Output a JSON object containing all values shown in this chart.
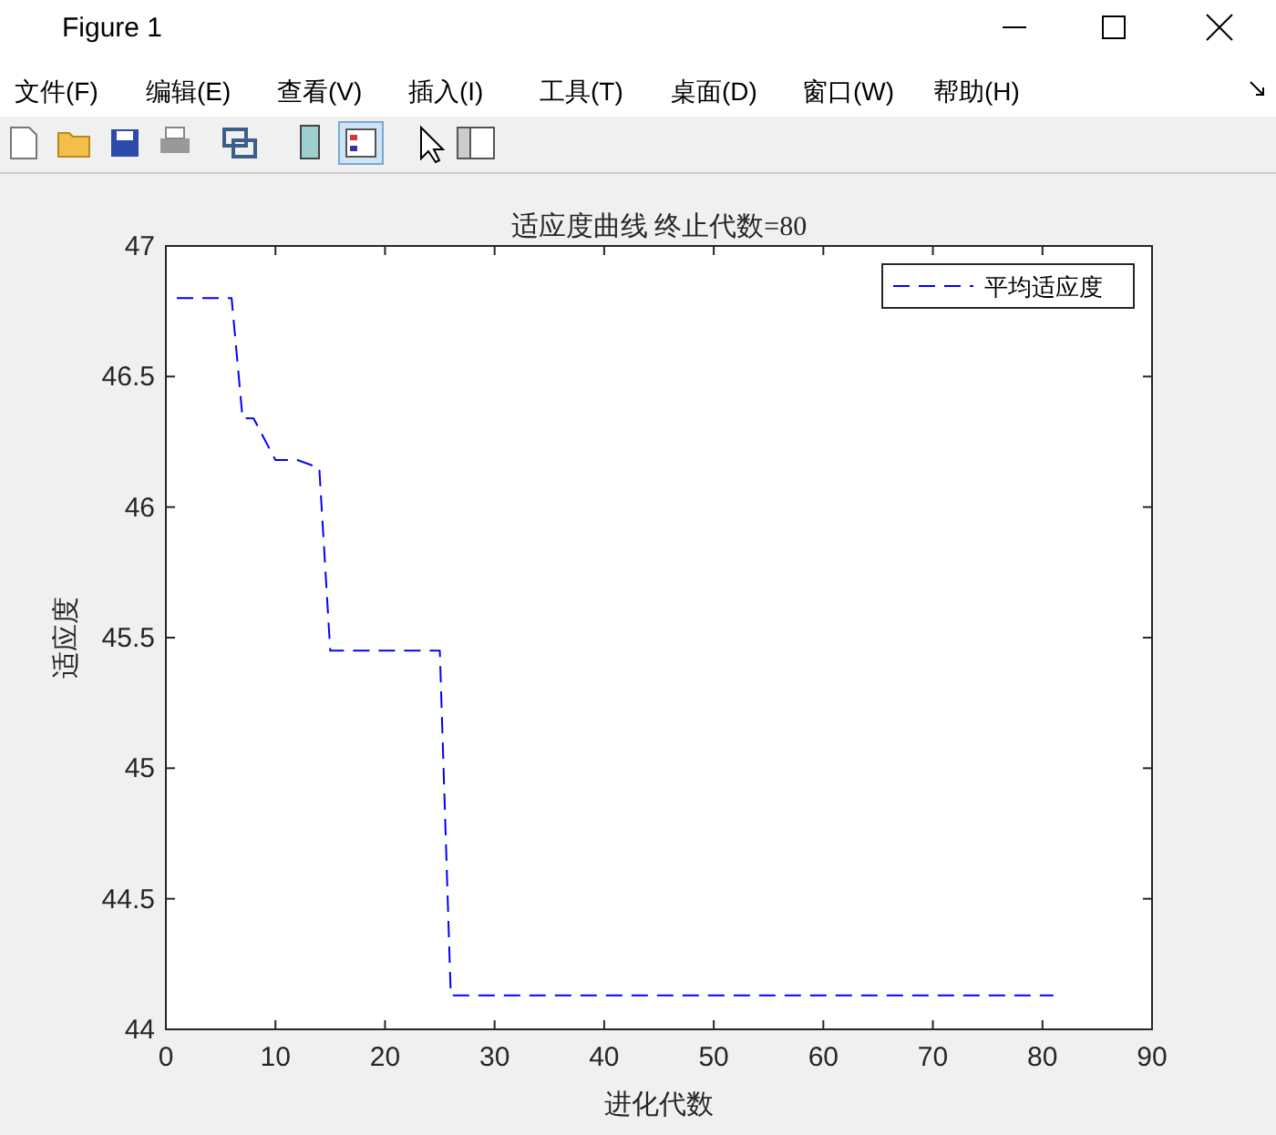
{
  "chart_data": {
    "type": "line",
    "title": "适应度曲线  终止代数=80",
    "xlabel": "进化代数",
    "ylabel": "适应度",
    "series": [
      {
        "name": "平均适应度",
        "color": "#0000ff",
        "x": [
          1,
          6,
          7,
          8,
          10,
          12,
          14,
          15,
          25,
          26,
          81
        ],
        "values": [
          46.8,
          46.8,
          46.34,
          46.34,
          46.18,
          46.18,
          46.15,
          45.45,
          45.45,
          44.13,
          44.13
        ]
      }
    ],
    "xlim": [
      0,
      90
    ],
    "xticks": [
      0,
      10,
      20,
      30,
      40,
      50,
      60,
      70,
      80,
      90
    ],
    "ylim": [
      44,
      47
    ],
    "yticks": [
      44,
      44.5,
      45,
      45.5,
      46,
      46.5,
      47
    ],
    "grid": false,
    "legend": "top right",
    "marker": "none",
    "line_style": "dashed",
    "annotations": [
      "Figure 1",
      "文件(F)",
      "编辑(E)",
      "查看(V)",
      "插入(I)",
      "工具(T)",
      "桌面(D)",
      "窗口(W)",
      "帮助(H)"
    ]
  }
}
